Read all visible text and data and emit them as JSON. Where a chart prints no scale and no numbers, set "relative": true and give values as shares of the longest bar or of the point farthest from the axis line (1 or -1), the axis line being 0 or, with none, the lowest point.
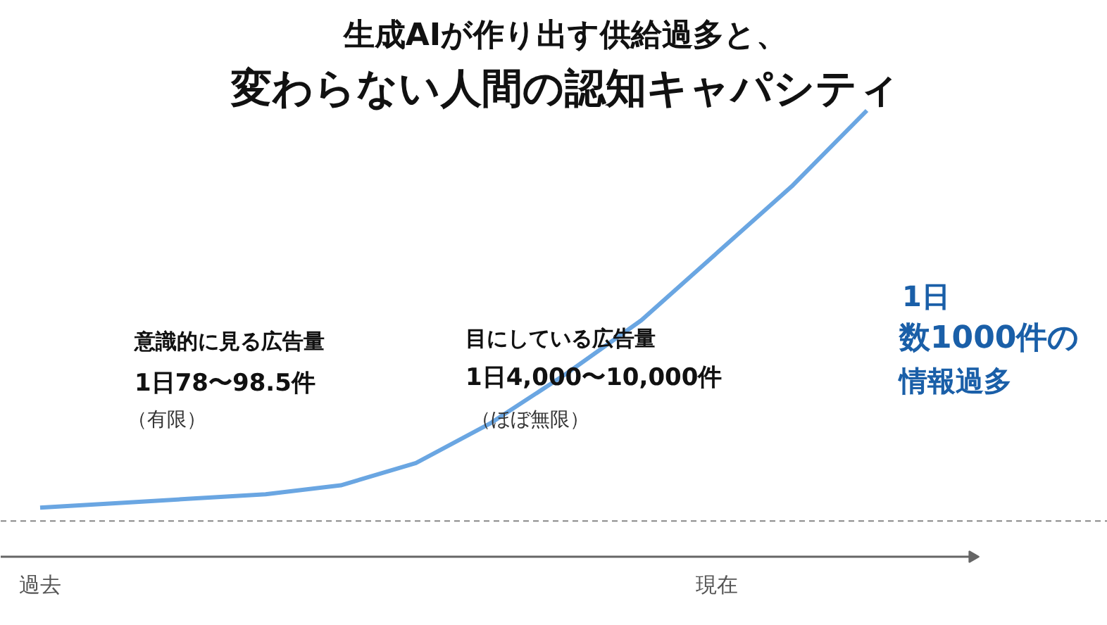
{
  "chart_data": {
    "type": "line",
    "relative": true,
    "title": "生成AIが作り出す供給過多と、",
    "subtitle": "変わらない人間の認知キャパシティ",
    "categories": [
      "過去",
      null,
      null,
      null,
      null,
      null,
      null,
      null,
      null,
      "現在",
      null,
      null
    ],
    "series": [
      {
        "color": "#6aa6e2",
        "values": [
          0.11,
          0.12,
          0.13,
          0.14,
          0.16,
          0.21,
          0.3,
          0.41,
          0.53,
          0.68,
          0.83,
          1.0
        ]
      }
    ],
    "ref_lines": [
      {
        "axis": "y",
        "value": 0.08,
        "color": "#888888",
        "line_style": "dashed"
      }
    ],
    "annotations": [
      "意識的に見る広告量",
      "1日78〜98.5件",
      "（有限）",
      "目にしている広告量",
      "1日4,000〜10,000件",
      "（ほぼ無限）",
      "1日",
      "数1000件の",
      "情報過多"
    ],
    "grid": false,
    "marker": "none",
    "line_style": "solid"
  }
}
